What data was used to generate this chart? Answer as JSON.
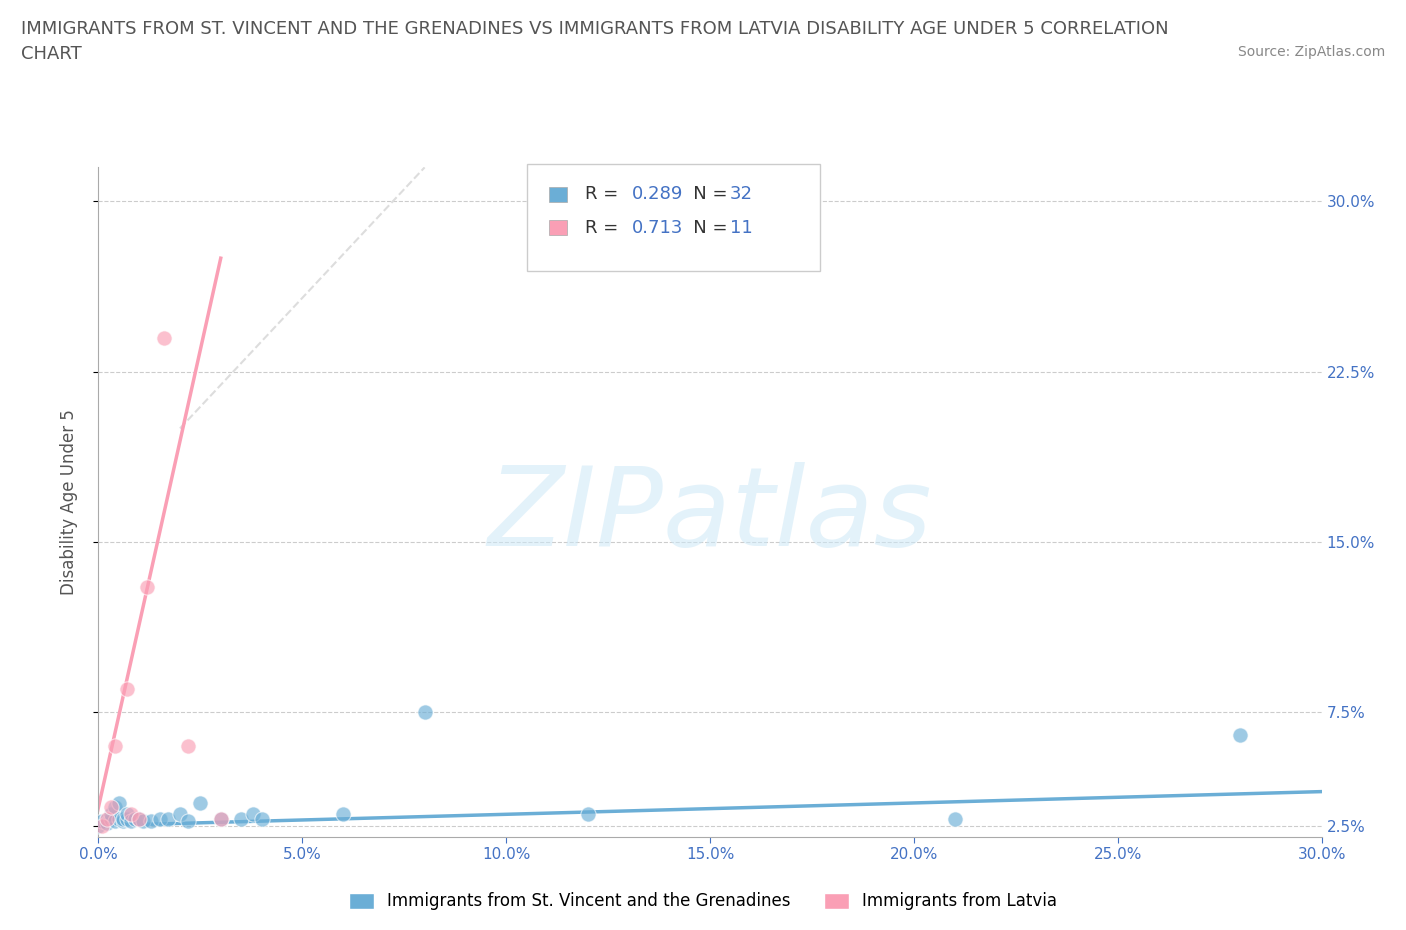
{
  "title_line1": "IMMIGRANTS FROM ST. VINCENT AND THE GRENADINES VS IMMIGRANTS FROM LATVIA DISABILITY AGE UNDER 5 CORRELATION",
  "title_line2": "CHART",
  "source_text": "Source: ZipAtlas.com",
  "ylabel": "Disability Age Under 5",
  "color_blue": "#6baed6",
  "color_pink": "#fa9fb5",
  "R_blue": 0.289,
  "N_blue": 32,
  "R_pink": 0.713,
  "N_pink": 11,
  "blue_scatter_x": [
    0.0,
    0.001,
    0.002,
    0.003,
    0.003,
    0.004,
    0.004,
    0.005,
    0.005,
    0.006,
    0.006,
    0.007,
    0.007,
    0.008,
    0.009,
    0.01,
    0.011,
    0.013,
    0.015,
    0.017,
    0.02,
    0.022,
    0.025,
    0.03,
    0.035,
    0.038,
    0.04,
    0.06,
    0.08,
    0.12,
    0.21,
    0.28
  ],
  "blue_scatter_y": [
    0.025,
    0.027,
    0.026,
    0.028,
    0.03,
    0.027,
    0.033,
    0.028,
    0.035,
    0.027,
    0.028,
    0.028,
    0.03,
    0.027,
    0.028,
    0.028,
    0.027,
    0.027,
    0.028,
    0.028,
    0.03,
    0.027,
    0.035,
    0.028,
    0.028,
    0.03,
    0.028,
    0.03,
    0.075,
    0.03,
    0.028,
    0.065
  ],
  "pink_scatter_x": [
    0.001,
    0.002,
    0.003,
    0.004,
    0.007,
    0.008,
    0.01,
    0.012,
    0.016,
    0.022,
    0.03
  ],
  "pink_scatter_y": [
    0.025,
    0.028,
    0.033,
    0.06,
    0.085,
    0.03,
    0.028,
    0.13,
    0.24,
    0.06,
    0.028
  ],
  "blue_trend_x": [
    0.0,
    0.3
  ],
  "blue_trend_y": [
    0.025,
    0.04
  ],
  "pink_trend_x": [
    -0.001,
    0.03
  ],
  "pink_trend_y": [
    0.025,
    0.275
  ],
  "xlim": [
    0.0,
    0.3
  ],
  "ylim": [
    0.02,
    0.315
  ],
  "ytick_positions": [
    0.025,
    0.075,
    0.15,
    0.225,
    0.3
  ],
  "ytick_labels": [
    "2.5%",
    "7.5%",
    "15.0%",
    "22.5%",
    "30.0%"
  ],
  "xtick_positions": [
    0.0,
    0.05,
    0.1,
    0.15,
    0.2,
    0.25,
    0.3
  ],
  "xtick_labels": [
    "0.0%",
    "5.0%",
    "10.0%",
    "15.0%",
    "20.0%",
    "25.0%",
    "30.0%"
  ],
  "legend_blue_label": "Immigrants from St. Vincent and the Grenadines",
  "legend_pink_label": "Immigrants from Latvia",
  "watermark_text": "ZIPatlas",
  "background_color": "#ffffff",
  "grid_color": "#cccccc",
  "title_color": "#555555",
  "axis_tick_color": "#4472c4",
  "source_color": "#888888",
  "ylabel_color": "#555555"
}
